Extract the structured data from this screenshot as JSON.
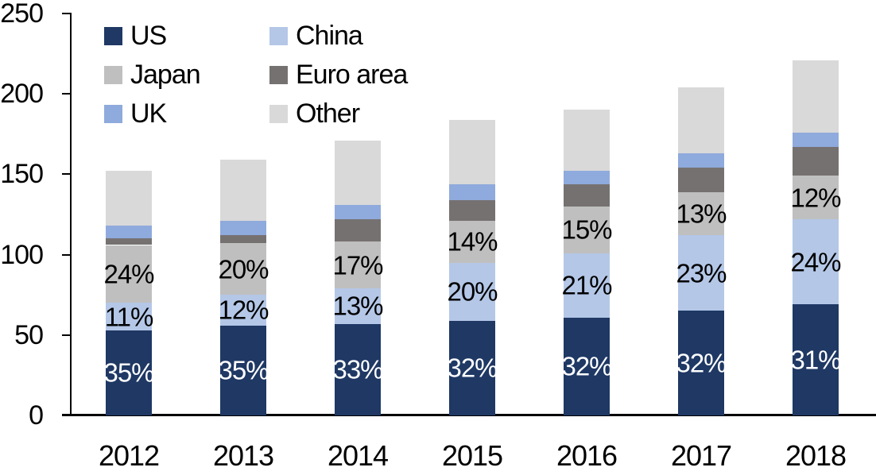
{
  "background": "#FFFFFF",
  "axis_color": "#000000",
  "chart_data": {
    "type": "bar",
    "stacked": true,
    "title": "",
    "xlabel": "",
    "ylabel": "",
    "categories": [
      "2012",
      "2013",
      "2014",
      "2015",
      "2016",
      "2017",
      "2018"
    ],
    "series": [
      {
        "name": "US",
        "color": "#1F3864",
        "values": [
          53,
          56,
          57,
          59,
          61,
          65,
          69
        ],
        "labels": [
          "35%",
          "35%",
          "33%",
          "32%",
          "32%",
          "32%",
          "31%"
        ],
        "label_color": "#FFFFFF"
      },
      {
        "name": "China",
        "color": "#B4C7E7",
        "values": [
          17,
          19,
          22,
          36,
          40,
          47,
          53
        ],
        "labels": [
          "11%",
          "12%",
          "13%",
          "20%",
          "21%",
          "23%",
          "24%"
        ],
        "label_color": "#000000"
      },
      {
        "name": "Japan",
        "color": "#BFBFBF",
        "values": [
          36,
          32,
          29,
          26,
          29,
          27,
          27
        ],
        "labels": [
          "24%",
          "20%",
          "17%",
          "14%",
          "15%",
          "13%",
          "12%"
        ],
        "label_color": "#000000"
      },
      {
        "name": "Euro area",
        "color": "#767171",
        "values": [
          4,
          5,
          14,
          13,
          14,
          15,
          18
        ],
        "labels": null,
        "label_color": null
      },
      {
        "name": "UK",
        "color": "#8FAADC",
        "values": [
          8,
          9,
          9,
          10,
          8,
          9,
          9
        ],
        "labels": null,
        "label_color": null
      },
      {
        "name": "Other",
        "color": "#D9D9D9",
        "values": [
          34,
          38,
          40,
          40,
          38,
          41,
          45
        ],
        "labels": null,
        "label_color": null
      }
    ],
    "totals": [
      152,
      159,
      171,
      184,
      190,
      204,
      221
    ],
    "y_axis": {
      "min": 0,
      "max": 250,
      "ticks": [
        0,
        50,
        100,
        150,
        200,
        250
      ]
    },
    "legend": {
      "position": "top-left",
      "columns": 2,
      "order": [
        "US",
        "China",
        "Japan",
        "Euro area",
        "UK",
        "Other"
      ]
    },
    "grid": false
  }
}
